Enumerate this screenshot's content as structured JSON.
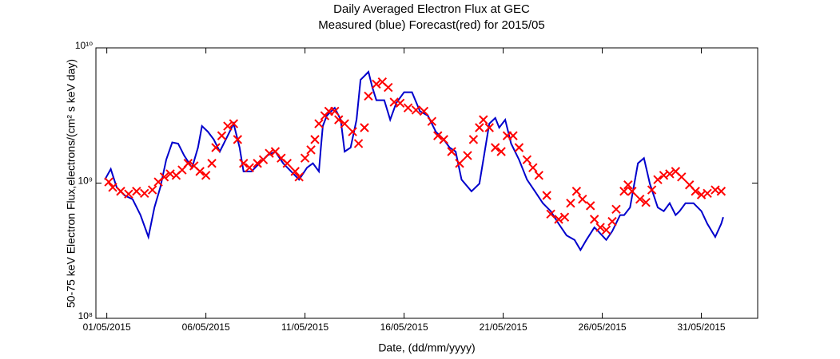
{
  "chart_data": {
    "type": "line",
    "title": "Daily Averaged Electron Flux at GEC",
    "subtitle": "Measured (blue) Forecast(red) for 2015/05",
    "x_label": "Date, (dd/mm/yyyy)",
    "y_label": "50-75 keV Electron Flux,electrons/(cm² s keV day)",
    "log_y": true,
    "xlim": [
      -0.55,
      32.84
    ],
    "xticks": [
      {
        "value": 0,
        "label": "01/05/2015"
      },
      {
        "value": 5,
        "label": "06/05/2015"
      },
      {
        "value": 10,
        "label": "11/05/2015"
      },
      {
        "value": 15,
        "label": "16/05/2015"
      },
      {
        "value": 20,
        "label": "21/05/2015"
      },
      {
        "value": 25,
        "label": "26/05/2015"
      },
      {
        "value": 30,
        "label": "31/05/2015"
      }
    ],
    "ylim": [
      100000000,
      10000000000
    ],
    "yticks": [
      {
        "value": 100000000,
        "label": "10⁸"
      },
      {
        "value": 1000000000,
        "label": "10⁹"
      },
      {
        "value": 10000000000,
        "label": "10¹⁰"
      }
    ],
    "series": [
      {
        "name": "Measured",
        "color": "#0000cc",
        "style": "line",
        "x": [
          -0.1,
          0.2,
          0.5,
          0.9,
          1.3,
          1.7,
          2.1,
          2.4,
          2.7,
          3.0,
          3.3,
          3.6,
          3.9,
          4.3,
          4.6,
          4.8,
          5.1,
          5.4,
          5.7,
          6.1,
          6.4,
          6.7,
          6.9,
          7.3,
          7.7,
          8.1,
          8.5,
          8.9,
          9.3,
          9.7,
          10.1,
          10.4,
          10.7,
          10.8,
          10.9,
          11.1,
          11.5,
          11.8,
          12.0,
          12.3,
          12.6,
          12.8,
          13.0,
          13.2,
          13.4,
          13.6,
          14.0,
          14.3,
          14.6,
          15.0,
          15.4,
          15.8,
          16.2,
          16.6,
          17.0,
          17.3,
          17.6,
          17.9,
          18.4,
          18.8,
          19.0,
          19.3,
          19.6,
          19.8,
          20.1,
          20.4,
          20.8,
          21.2,
          21.6,
          22.0,
          22.4,
          22.8,
          23.2,
          23.6,
          23.9,
          24.2,
          24.6,
          24.8,
          25.2,
          25.5,
          25.9,
          26.1,
          26.4,
          26.8,
          27.1,
          27.4,
          27.8,
          28.1,
          28.4,
          28.7,
          28.9,
          29.2,
          29.6,
          30.0,
          30.3,
          30.7,
          31.0,
          31.1
        ],
        "values": [
          1060000000.0,
          1270000000.0,
          930000000.0,
          810000000.0,
          760000000.0,
          580000000.0,
          400000000.0,
          660000000.0,
          930000000.0,
          1490000000.0,
          2000000000.0,
          1960000000.0,
          1600000000.0,
          1300000000.0,
          1830000000.0,
          2640000000.0,
          2400000000.0,
          2100000000.0,
          1710000000.0,
          2240000000.0,
          2750000000.0,
          1830000000.0,
          1220000000.0,
          1220000000.0,
          1400000000.0,
          1600000000.0,
          1710000000.0,
          1400000000.0,
          1220000000.0,
          1060000000.0,
          1300000000.0,
          1400000000.0,
          1220000000.0,
          1830000000.0,
          2640000000.0,
          3150000000.0,
          3600000000.0,
          2940000000.0,
          1710000000.0,
          1830000000.0,
          2940000000.0,
          5800000000.0,
          6200000000.0,
          6650000000.0,
          5100000000.0,
          4100000000.0,
          4100000000.0,
          2940000000.0,
          3900000000.0,
          4700000000.0,
          4700000000.0,
          3400000000.0,
          3150000000.0,
          2400000000.0,
          2100000000.0,
          1830000000.0,
          1710000000.0,
          1060000000.0,
          870000000.0,
          990000000.0,
          1490000000.0,
          2750000000.0,
          3030000000.0,
          2570000000.0,
          2940000000.0,
          1960000000.0,
          1490000000.0,
          1060000000.0,
          870000000.0,
          710000000.0,
          620000000.0,
          500000000.0,
          410000000.0,
          380000000.0,
          320000000.0,
          380000000.0,
          470000000.0,
          440000000.0,
          380000000.0,
          440000000.0,
          580000000.0,
          580000000.0,
          660000000.0,
          1400000000.0,
          1530000000.0,
          990000000.0,
          660000000.0,
          620000000.0,
          710000000.0,
          580000000.0,
          620000000.0,
          710000000.0,
          710000000.0,
          620000000.0,
          500000000.0,
          400000000.0,
          500000000.0,
          560000000.0
        ]
      },
      {
        "name": "Forecast",
        "color": "#ff0000",
        "style": "x-marker",
        "x": [
          0.1,
          0.3,
          0.7,
          1.1,
          1.5,
          1.9,
          2.3,
          2.6,
          2.9,
          3.2,
          3.5,
          3.8,
          4.1,
          4.4,
          4.7,
          5.0,
          5.3,
          5.5,
          5.8,
          6.1,
          6.4,
          6.6,
          6.9,
          7.2,
          7.6,
          7.9,
          8.2,
          8.5,
          8.8,
          9.1,
          9.5,
          9.7,
          10.0,
          10.3,
          10.5,
          10.7,
          11.0,
          11.2,
          11.5,
          11.7,
          12.0,
          12.4,
          12.7,
          13.0,
          13.2,
          13.6,
          13.9,
          14.2,
          14.5,
          14.8,
          15.2,
          15.6,
          16.0,
          16.4,
          16.7,
          17.0,
          17.4,
          17.8,
          18.2,
          18.5,
          18.8,
          19.0,
          19.3,
          19.6,
          19.9,
          20.2,
          20.5,
          20.8,
          21.2,
          21.5,
          21.8,
          22.2,
          22.4,
          22.8,
          23.1,
          23.4,
          23.7,
          24.0,
          24.4,
          24.6,
          24.9,
          25.2,
          25.5,
          25.7,
          26.1,
          26.3,
          26.5,
          26.9,
          27.2,
          27.5,
          27.8,
          28.1,
          28.4,
          28.7,
          29.0,
          29.4,
          29.7,
          30.0,
          30.3,
          30.7,
          31.0
        ],
        "values": [
          1020000000.0,
          930000000.0,
          870000000.0,
          830000000.0,
          870000000.0,
          840000000.0,
          890000000.0,
          1020000000.0,
          1110000000.0,
          1170000000.0,
          1140000000.0,
          1250000000.0,
          1400000000.0,
          1340000000.0,
          1220000000.0,
          1140000000.0,
          1400000000.0,
          1830000000.0,
          2240000000.0,
          2640000000.0,
          2750000000.0,
          2100000000.0,
          1400000000.0,
          1300000000.0,
          1400000000.0,
          1490000000.0,
          1660000000.0,
          1710000000.0,
          1530000000.0,
          1400000000.0,
          1220000000.0,
          1110000000.0,
          1530000000.0,
          1760000000.0,
          2100000000.0,
          2750000000.0,
          3150000000.0,
          3400000000.0,
          3400000000.0,
          2940000000.0,
          2750000000.0,
          2400000000.0,
          1960000000.0,
          2570000000.0,
          4400000000.0,
          5400000000.0,
          5600000000.0,
          5100000000.0,
          3970000000.0,
          3900000000.0,
          3600000000.0,
          3470000000.0,
          3400000000.0,
          2860000000.0,
          2240000000.0,
          2100000000.0,
          1710000000.0,
          1400000000.0,
          1600000000.0,
          2100000000.0,
          2570000000.0,
          2940000000.0,
          2570000000.0,
          1830000000.0,
          1710000000.0,
          2240000000.0,
          2240000000.0,
          1830000000.0,
          1490000000.0,
          1300000000.0,
          1140000000.0,
          810000000.0,
          590000000.0,
          540000000.0,
          560000000.0,
          710000000.0,
          870000000.0,
          760000000.0,
          680000000.0,
          540000000.0,
          470000000.0,
          450000000.0,
          520000000.0,
          640000000.0,
          870000000.0,
          970000000.0,
          870000000.0,
          760000000.0,
          720000000.0,
          890000000.0,
          1060000000.0,
          1140000000.0,
          1170000000.0,
          1220000000.0,
          1110000000.0,
          970000000.0,
          870000000.0,
          820000000.0,
          840000000.0,
          890000000.0,
          870000000.0
        ]
      }
    ]
  }
}
